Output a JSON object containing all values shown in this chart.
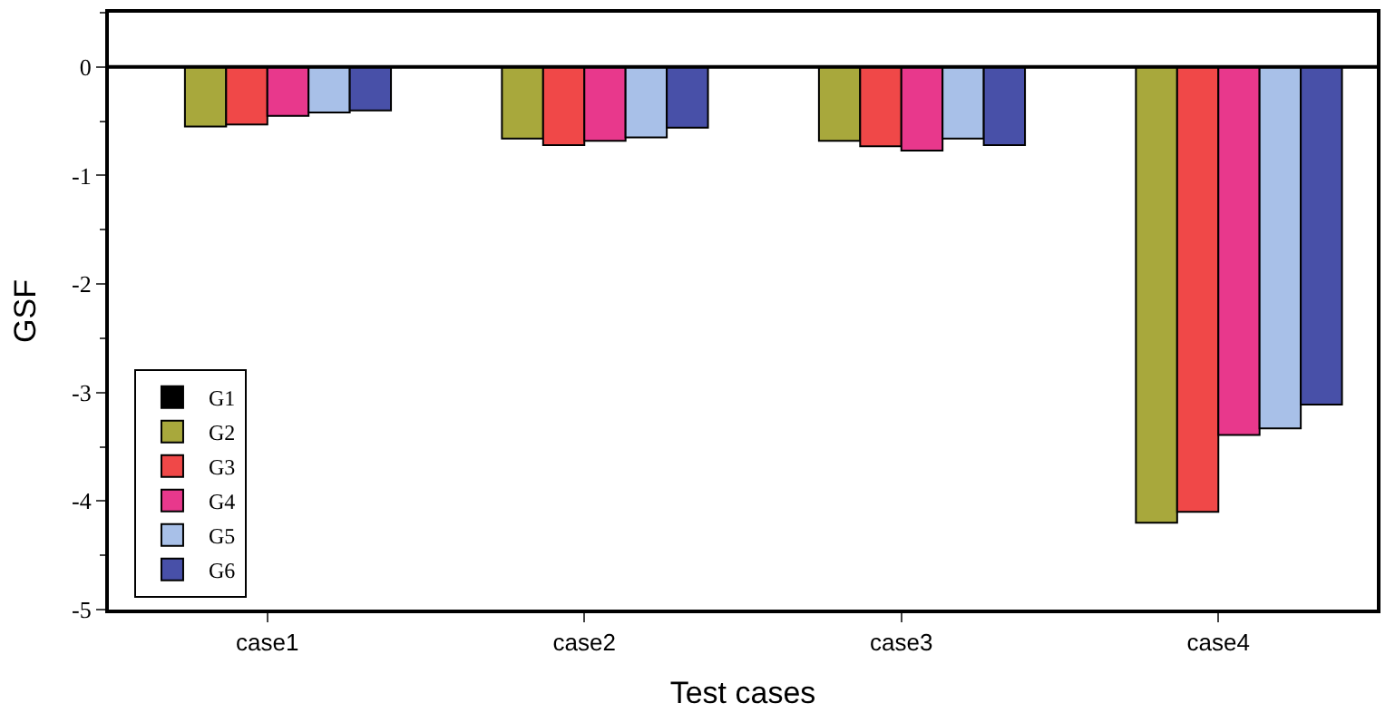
{
  "chart_data": {
    "type": "bar",
    "xlabel": "Test cases",
    "ylabel": "GSF",
    "categories": [
      "case1",
      "case2",
      "case3",
      "case4"
    ],
    "series": [
      {
        "name": "G1",
        "color": "#000000",
        "values": [
          0,
          0,
          0,
          0
        ]
      },
      {
        "name": "G2",
        "color": "#a8a83c",
        "values": [
          -0.55,
          -0.66,
          -0.68,
          -4.2
        ]
      },
      {
        "name": "G3",
        "color": "#f04848",
        "values": [
          -0.53,
          -0.72,
          -0.73,
          -4.1
        ]
      },
      {
        "name": "G4",
        "color": "#e8388c",
        "values": [
          -0.45,
          -0.68,
          -0.77,
          -3.39
        ]
      },
      {
        "name": "G5",
        "color": "#a8c0e8",
        "values": [
          -0.42,
          -0.65,
          -0.66,
          -3.33
        ]
      },
      {
        "name": "G6",
        "color": "#4850a8",
        "values": [
          -0.4,
          -0.56,
          -0.72,
          -3.11
        ]
      }
    ],
    "ylim": [
      -5,
      0.5
    ],
    "yticks": [
      -5,
      -4,
      -3,
      -2,
      -1,
      0
    ],
    "ref_lines": [
      {
        "axis": "y",
        "value": 0,
        "color": "#000000"
      }
    ],
    "legend": "bottom left"
  }
}
